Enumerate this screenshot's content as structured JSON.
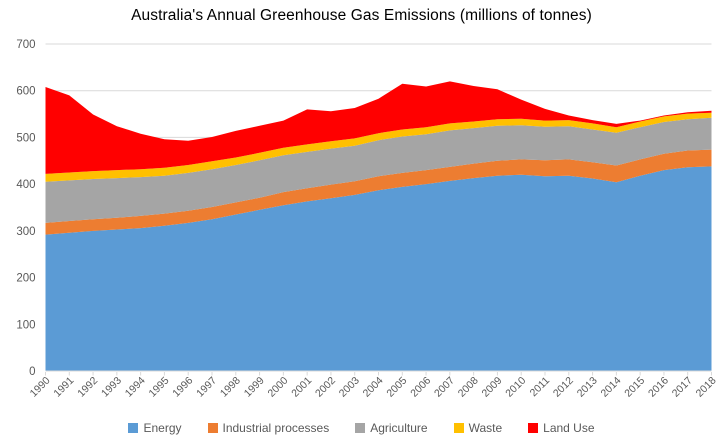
{
  "chart_data": {
    "type": "area",
    "stacked": true,
    "title": "Australia's Annual Greenhouse Gas Emissions (millions of tonnes)",
    "xlabel": "",
    "ylabel": "",
    "ylim": [
      0,
      700
    ],
    "y_tick_step": 100,
    "y_tick_labels": [
      "0",
      "100",
      "200",
      "300",
      "400",
      "500",
      "600",
      "700"
    ],
    "grid": true,
    "legend_position": "bottom",
    "categories": [
      "1990",
      "1991",
      "1992",
      "1993",
      "1994",
      "1995",
      "1996",
      "1997",
      "1998",
      "1999",
      "2000",
      "2001",
      "2002",
      "2003",
      "2004",
      "2005",
      "2006",
      "2007",
      "2008",
      "2009",
      "2010",
      "2011",
      "2012",
      "2013",
      "2014",
      "2015",
      "2016",
      "2017",
      "2018"
    ],
    "series": [
      {
        "name": "Energy",
        "color": "#5B9BD5",
        "values": [
          292,
          296,
          300,
          303,
          306,
          311,
          317,
          325,
          335,
          345,
          355,
          363,
          370,
          377,
          387,
          394,
          400,
          407,
          413,
          418,
          420,
          417,
          418,
          412,
          404,
          418,
          430,
          436,
          438
        ]
      },
      {
        "name": "Industrial processes",
        "color": "#ED7D31",
        "values": [
          25,
          25,
          25,
          25,
          26,
          26,
          26,
          26,
          26,
          26,
          28,
          28,
          29,
          29,
          30,
          30,
          30,
          30,
          31,
          32,
          33,
          34,
          35,
          35,
          36,
          35,
          35,
          36,
          36
        ]
      },
      {
        "name": "Agriculture",
        "color": "#A5A5A5",
        "values": [
          88,
          87,
          86,
          85,
          83,
          81,
          81,
          81,
          80,
          80,
          79,
          78,
          77,
          76,
          77,
          78,
          77,
          78,
          76,
          75,
          73,
          72,
          71,
          70,
          70,
          69,
          68,
          67,
          68
        ]
      },
      {
        "name": "Waste",
        "color": "#FFC000",
        "values": [
          17,
          17,
          17,
          17,
          17,
          17,
          17,
          17,
          16,
          16,
          16,
          16,
          16,
          16,
          15,
          15,
          15,
          15,
          14,
          14,
          14,
          13,
          13,
          13,
          12,
          12,
          12,
          12,
          11
        ]
      },
      {
        "name": "Land Use",
        "color": "#FF0000",
        "values": [
          186,
          165,
          121,
          94,
          76,
          61,
          52,
          52,
          57,
          58,
          58,
          75,
          64,
          65,
          74,
          98,
          87,
          90,
          76,
          64,
          41,
          25,
          10,
          7,
          7,
          2,
          2,
          3,
          4
        ]
      }
    ],
    "colors": {
      "gridline": "#D9D9D9",
      "axis_text": "#595959",
      "legend_text": "#595959",
      "title_text": "#000000"
    }
  }
}
